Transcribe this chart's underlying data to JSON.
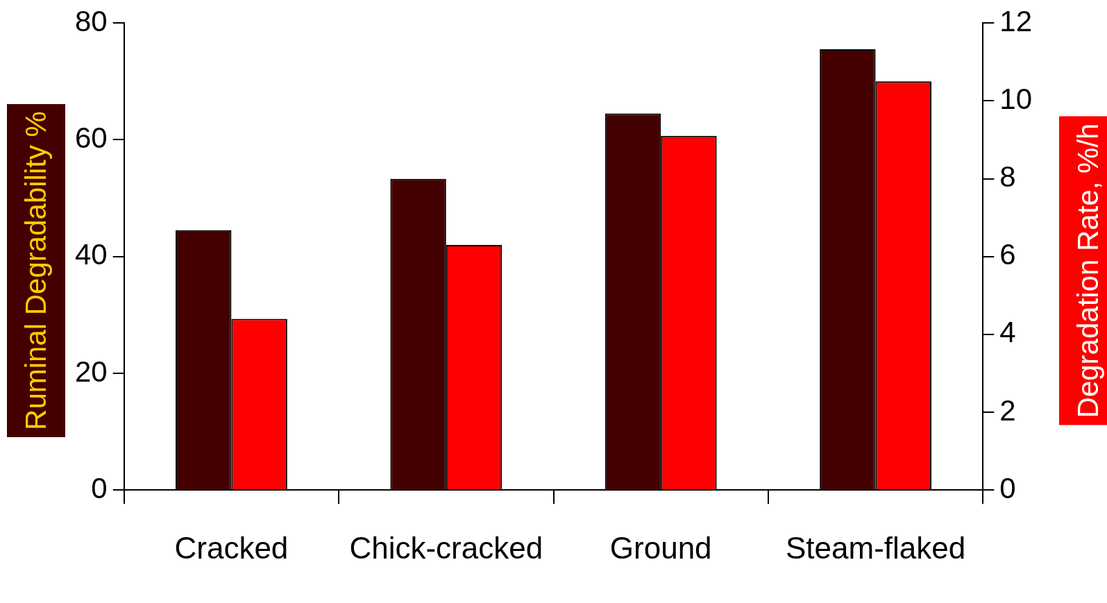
{
  "chart_data": {
    "type": "bar",
    "ylabel": "Ruminal Degradability %",
    "y2label": "Degradation Rate, %/h",
    "categories": [
      "Cracked",
      "Chick-cracked",
      "Ground",
      "Steam-flaked"
    ],
    "series": [
      {
        "color": "#440000",
        "values": [
          44.5,
          53.3,
          64.5,
          75.5
        ]
      },
      {
        "color": "#ff0000",
        "axis": "y2",
        "values": [
          4.4,
          6.3,
          9.1,
          10.5
        ]
      }
    ],
    "ylim": [
      0,
      80
    ],
    "yticks": [
      0,
      20,
      40,
      60,
      80
    ],
    "y2lim": [
      0,
      12
    ],
    "y2ticks": [
      0,
      2,
      4,
      6,
      8,
      10,
      12
    ],
    "grid": false,
    "legend": false
  }
}
